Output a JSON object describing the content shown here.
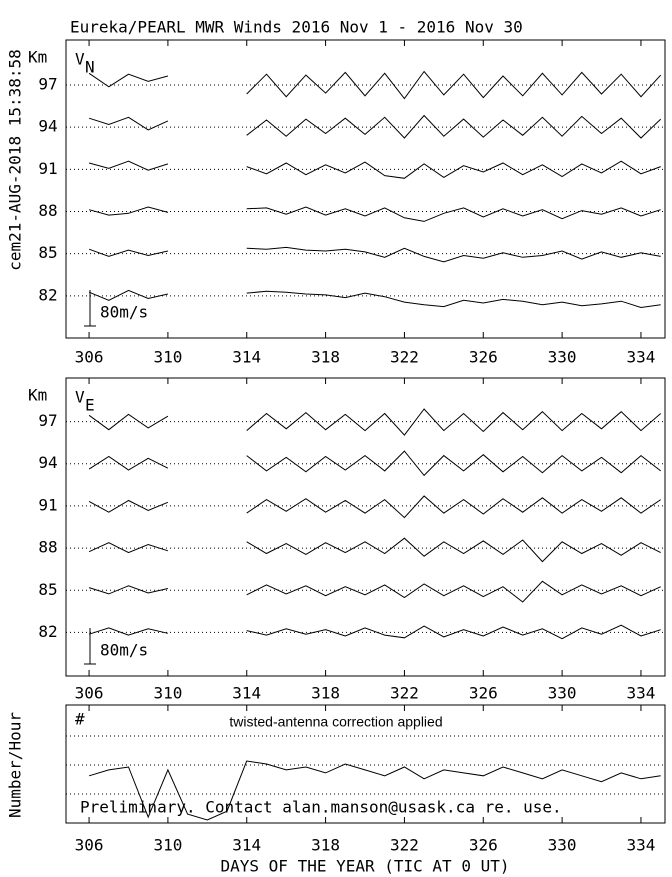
{
  "chart_data": [
    {
      "type": "line",
      "title": "Eureka/PEARL MWR Winds 2016 Nov  1 - 2016 Nov 30",
      "side_label": "cem21-AUG-2018 15:38:58",
      "y_label": "Km",
      "panel_label": "V",
      "panel_sub": "N",
      "scale_label": "80m/s",
      "xlim": [
        304.83,
        335.22
      ],
      "xticks": [
        306,
        310,
        314,
        318,
        322,
        326,
        330,
        334
      ],
      "ylim": [
        79,
        100.2
      ],
      "yticks": [
        82,
        85,
        88,
        91,
        94,
        97
      ],
      "x": [
        306,
        307,
        308,
        309,
        310,
        311,
        312,
        313,
        314,
        315,
        316,
        317,
        318,
        319,
        320,
        321,
        322,
        323,
        324,
        325,
        326,
        327,
        328,
        329,
        330,
        331,
        332,
        333,
        334,
        335
      ],
      "series": [
        {
          "values": [
            8,
            -10,
            12,
            -6,
            4,
            null,
            null,
            null,
            6,
            10,
            8,
            4,
            2,
            -4,
            6,
            -2,
            -14,
            -20,
            -24,
            -10,
            -16,
            -8,
            -12,
            -20,
            -14,
            -22,
            -18,
            -12,
            -26,
            -20
          ]
        },
        {
          "values": [
            10,
            -6,
            8,
            -4,
            6,
            null,
            null,
            null,
            12,
            10,
            14,
            8,
            6,
            10,
            4,
            -8,
            12,
            -6,
            -18,
            -4,
            -10,
            2,
            -8,
            -4,
            6,
            -12,
            4,
            -8,
            2,
            -6
          ]
        },
        {
          "values": [
            4,
            -8,
            -4,
            10,
            -2,
            null,
            null,
            null,
            6,
            8,
            -6,
            10,
            -8,
            6,
            -10,
            8,
            -14,
            -22,
            -4,
            8,
            -12,
            6,
            -10,
            4,
            -16,
            2,
            -6,
            8,
            -10,
            4
          ]
        },
        {
          "values": [
            14,
            2,
            18,
            -2,
            12,
            null,
            null,
            null,
            6,
            -10,
            14,
            -12,
            10,
            -8,
            16,
            -14,
            -20,
            12,
            -18,
            8,
            -6,
            14,
            -12,
            10,
            -16,
            12,
            -8,
            18,
            -10,
            6
          ]
        },
        {
          "values": [
            20,
            6,
            22,
            -6,
            14,
            null,
            null,
            null,
            -18,
            16,
            -20,
            18,
            -14,
            20,
            -16,
            22,
            -24,
            26,
            -20,
            18,
            -22,
            16,
            -18,
            22,
            -20,
            24,
            -14,
            20,
            -24,
            18
          ]
        },
        {
          "values": [
            26,
            -4,
            24,
            8,
            20,
            null,
            null,
            null,
            -20,
            24,
            -26,
            22,
            -18,
            28,
            -24,
            26,
            -30,
            30,
            -22,
            24,
            -28,
            20,
            -24,
            26,
            -22,
            28,
            -20,
            24,
            -26,
            22
          ]
        }
      ]
    },
    {
      "type": "line",
      "y_label": "Km",
      "panel_label": "V",
      "panel_sub": "E",
      "scale_label": "80m/s",
      "xlim": [
        304.83,
        335.22
      ],
      "xticks": [
        306,
        310,
        314,
        318,
        322,
        326,
        330,
        334
      ],
      "ylim": [
        78.9,
        100.1
      ],
      "yticks": [
        82,
        85,
        88,
        91,
        94,
        97
      ],
      "x": [
        306,
        307,
        308,
        309,
        310,
        311,
        312,
        313,
        314,
        315,
        316,
        317,
        318,
        319,
        320,
        321,
        322,
        323,
        324,
        325,
        326,
        327,
        328,
        329,
        330,
        331,
        332,
        333,
        334,
        335
      ],
      "series": [
        {
          "values": [
            -4,
            10,
            -6,
            8,
            -2,
            null,
            null,
            null,
            4,
            -6,
            8,
            -4,
            6,
            -8,
            10,
            -6,
            -12,
            14,
            -10,
            6,
            -8,
            12,
            -6,
            8,
            -14,
            10,
            -4,
            16,
            -8,
            6
          ]
        },
        {
          "values": [
            6,
            -8,
            10,
            -6,
            4,
            null,
            null,
            null,
            -10,
            12,
            -8,
            10,
            -12,
            8,
            -10,
            12,
            -16,
            14,
            -12,
            10,
            -14,
            8,
            -26,
            20,
            -10,
            12,
            -8,
            10,
            -12,
            8
          ]
        },
        {
          "values": [
            -8,
            12,
            -10,
            8,
            -6,
            null,
            null,
            null,
            14,
            -12,
            10,
            -14,
            12,
            -10,
            14,
            -12,
            22,
            -18,
            14,
            -12,
            16,
            -14,
            18,
            -30,
            14,
            -12,
            10,
            -16,
            12,
            -10
          ]
        },
        {
          "values": [
            10,
            -14,
            12,
            -10,
            8,
            null,
            null,
            null,
            -16,
            14,
            -12,
            16,
            -14,
            12,
            -16,
            14,
            -26,
            22,
            -16,
            14,
            -18,
            16,
            -14,
            18,
            -16,
            14,
            -12,
            18,
            -16,
            14
          ]
        },
        {
          "values": [
            -12,
            16,
            -14,
            12,
            -10,
            null,
            null,
            null,
            18,
            -16,
            14,
            -18,
            16,
            -14,
            18,
            -16,
            28,
            -26,
            18,
            -16,
            20,
            -18,
            16,
            -20,
            18,
            -16,
            14,
            -20,
            18,
            -16
          ]
        },
        {
          "values": [
            14,
            -18,
            16,
            -14,
            12,
            null,
            null,
            null,
            -20,
            18,
            -16,
            20,
            -18,
            16,
            -20,
            18,
            -30,
            28,
            -20,
            18,
            -22,
            20,
            -18,
            22,
            -20,
            18,
            -16,
            22,
            -20,
            18
          ]
        }
      ]
    },
    {
      "type": "line",
      "y_label": "Number/Hour",
      "marker": "#",
      "annotation": "twisted-antenna correction applied",
      "footer": "Preliminary. Contact alan.manson@usask.ca re. use.",
      "x_label": "DAYS OF THE YEAR (TIC AT 0 UT)",
      "xlim": [
        304.83,
        335.22
      ],
      "xticks": [
        306,
        310,
        314,
        318,
        322,
        326,
        330,
        334
      ],
      "ylim": [
        0,
        40
      ],
      "x": [
        306,
        307,
        308,
        309,
        310,
        311,
        312,
        313,
        314,
        315,
        316,
        317,
        318,
        319,
        320,
        321,
        322,
        323,
        324,
        325,
        326,
        327,
        328,
        329,
        330,
        331,
        332,
        333,
        334,
        335
      ],
      "values": [
        16,
        18,
        19,
        2,
        18,
        3,
        1,
        4,
        21,
        20,
        18,
        19,
        17,
        20,
        18,
        16,
        19,
        15,
        18,
        17,
        16,
        19,
        17,
        15,
        18,
        16,
        14,
        17,
        15,
        16
      ]
    }
  ]
}
